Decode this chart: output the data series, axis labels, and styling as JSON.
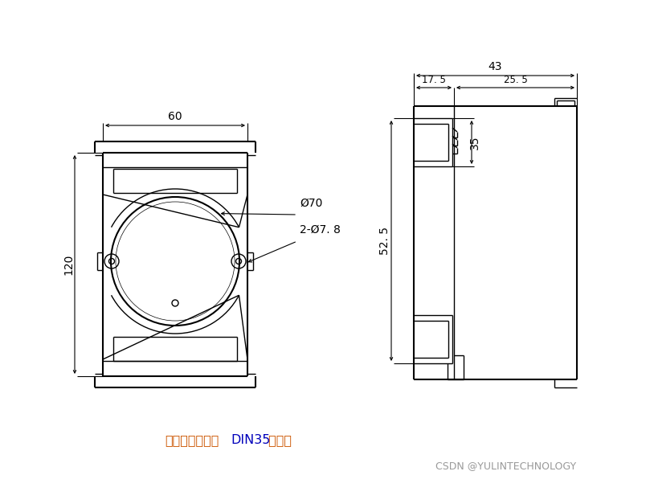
{
  "bg_color": "#ffffff",
  "line_color": "#000000",
  "lw": 1.0,
  "lw_thick": 1.5,
  "lw_dim": 0.8,
  "dim_60": "60",
  "dim_120": "120",
  "dim_43": "43",
  "dim_17_5": "17. 5",
  "dim_25_5": "25. 5",
  "dim_52_5": "52. 5",
  "dim_35": "35",
  "dim_phi70": "Ø70",
  "dim_phi78": "2-Ø7. 8",
  "caption_chinese1": "可以安装在标准",
  "caption_din": "DIN35",
  "caption_chinese2": " 导轨上",
  "caption_color_orange": "#cc5500",
  "caption_color_blue": "#0000bb",
  "watermark": "CSDN @YULINTECHNOLOGY",
  "watermark_color": "#999999"
}
